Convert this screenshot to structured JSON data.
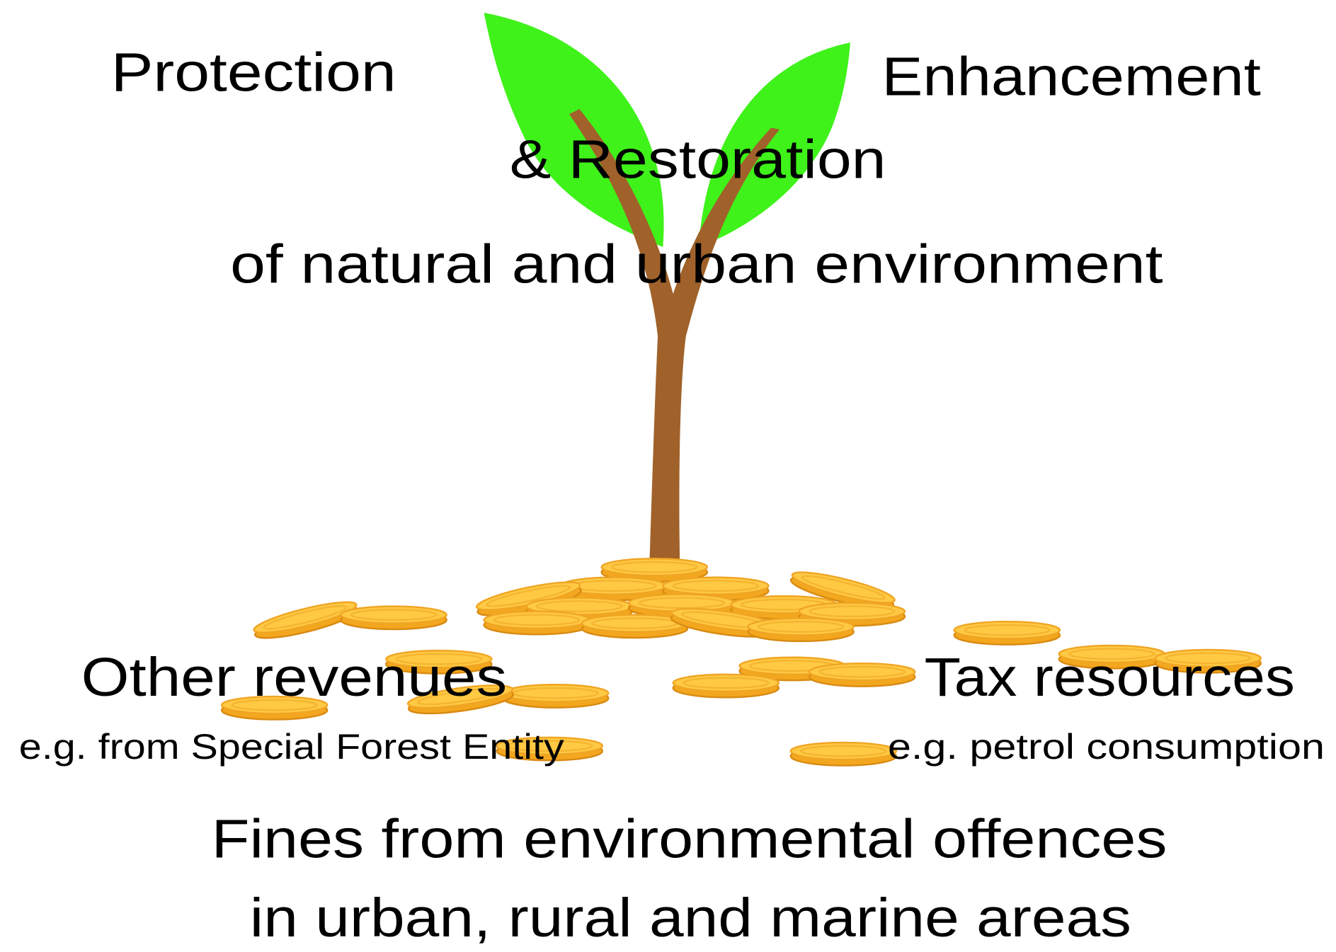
{
  "diagram": {
    "top": {
      "left": "Protection",
      "right": "Enhancement",
      "middle": "& Restoration",
      "subject": "of natural and urban environment"
    },
    "sources": {
      "left": {
        "title": "Other revenues",
        "example": "e.g. from Special Forest Entity"
      },
      "right": {
        "title": "Tax resources",
        "example": "e.g. petrol consumption"
      },
      "bottom": {
        "line1": "Fines from environmental offences",
        "line2": "in urban, rural and marine areas"
      }
    }
  }
}
